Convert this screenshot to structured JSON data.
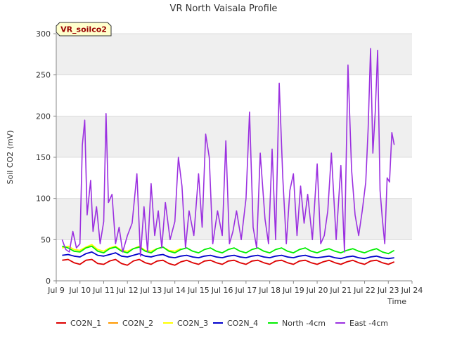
{
  "chart_data": {
    "type": "line",
    "title": "VR North Vaisala Profile",
    "xlabel": "Time",
    "ylabel": "Soil CO2 (mV)",
    "ylim": [
      0,
      300
    ],
    "xlim": [
      9,
      24
    ],
    "yticks": [
      "0",
      "50",
      "100",
      "150",
      "200",
      "250",
      "300"
    ],
    "xticks": [
      "Jul 9",
      "Jul 10",
      "Jul 11",
      "Jul 12",
      "Jul 13",
      "Jul 14",
      "Jul 15",
      "Jul 16",
      "Jul 17",
      "Jul 18",
      "Jul 19",
      "Jul 20",
      "Jul 21",
      "Jul 22",
      "Jul 23",
      "Jul 24"
    ],
    "grid": true,
    "badge": "VR_soilco2",
    "legend_position": "bottom",
    "series": [
      {
        "name": "CO2N_1",
        "color": "#dd0000",
        "x": [
          9.25,
          9.5,
          9.75,
          10.0,
          10.25,
          10.5,
          10.75,
          11.0,
          11.25,
          11.5,
          11.75,
          12.0,
          12.25,
          12.5,
          12.75,
          13.0,
          13.25,
          13.5,
          13.75,
          14.0,
          14.25,
          14.5,
          14.75,
          15.0,
          15.25,
          15.5,
          15.75,
          16.0,
          16.25,
          16.5,
          16.75,
          17.0,
          17.25,
          17.5,
          17.75,
          18.0,
          18.25,
          18.5,
          18.75,
          19.0,
          19.25,
          19.5,
          19.75,
          20.0,
          20.25,
          20.5,
          20.75,
          21.0,
          21.25,
          21.5,
          21.75,
          22.0,
          22.25,
          22.5,
          22.75,
          23.0,
          23.25
        ],
        "values": [
          25,
          26,
          22,
          20,
          25,
          26,
          21,
          20,
          24,
          26,
          21,
          19,
          24,
          26,
          22,
          20,
          24,
          25,
          21,
          19,
          23,
          25,
          22,
          20,
          24,
          25,
          22,
          20,
          24,
          25,
          22,
          20,
          24,
          25,
          22,
          20,
          24,
          25,
          22,
          20,
          24,
          25,
          22,
          20,
          23,
          25,
          22,
          20,
          23,
          25,
          22,
          20,
          24,
          25,
          22,
          20,
          23
        ]
      },
      {
        "name": "CO2N_2",
        "color": "#ff9900",
        "x": [],
        "values": []
      },
      {
        "name": "CO2N_3",
        "color": "#ffff00",
        "x": [
          9.25,
          9.5,
          9.75,
          10.0,
          10.25,
          10.5,
          10.75,
          11.0,
          11.25,
          11.5,
          11.75,
          12.0,
          12.25,
          12.5,
          12.75,
          13.0,
          13.25,
          13.5,
          13.75,
          14.0,
          14.25
        ],
        "values": [
          40,
          42,
          38,
          37,
          41,
          44,
          38,
          36,
          40,
          42,
          37,
          36,
          39,
          42,
          37,
          36,
          39,
          41,
          37,
          36,
          39
        ]
      },
      {
        "name": "CO2N_4",
        "color": "#0000cc",
        "x": [
          9.25,
          9.5,
          9.75,
          10.0,
          10.25,
          10.5,
          10.75,
          11.0,
          11.25,
          11.5,
          11.75,
          12.0,
          12.25,
          12.5,
          12.75,
          13.0,
          13.25,
          13.5,
          13.75,
          14.0,
          14.25,
          14.5,
          14.75,
          15.0,
          15.25,
          15.5,
          15.75,
          16.0,
          16.25,
          16.5,
          16.75,
          17.0,
          17.25,
          17.5,
          17.75,
          18.0,
          18.25,
          18.5,
          18.75,
          19.0,
          19.25,
          19.5,
          19.75,
          20.0,
          20.25,
          20.5,
          20.75,
          21.0,
          21.25,
          21.5,
          21.75,
          22.0,
          22.25,
          22.5,
          22.75,
          23.0,
          23.25
        ],
        "values": [
          31,
          32,
          30,
          29,
          33,
          35,
          31,
          30,
          32,
          34,
          30,
          29,
          31,
          33,
          30,
          29,
          31,
          32,
          29,
          28,
          30,
          31,
          29,
          28,
          30,
          31,
          29,
          28,
          30,
          31,
          29,
          28,
          30,
          31,
          29,
          28,
          30,
          31,
          29,
          28,
          30,
          31,
          29,
          28,
          29,
          30,
          28,
          27,
          29,
          30,
          28,
          27,
          29,
          30,
          28,
          27,
          28
        ]
      },
      {
        "name": "North -4cm",
        "color": "#00ee00",
        "x": [
          9.25,
          9.5,
          9.75,
          10.0,
          10.25,
          10.5,
          10.75,
          11.0,
          11.25,
          11.5,
          11.75,
          12.0,
          12.25,
          12.5,
          12.75,
          13.0,
          13.25,
          13.5,
          13.75,
          14.0,
          14.25,
          14.5,
          14.75,
          15.0,
          15.25,
          15.5,
          15.75,
          16.0,
          16.25,
          16.5,
          16.75,
          17.0,
          17.25,
          17.5,
          17.75,
          18.0,
          18.25,
          18.5,
          18.75,
          19.0,
          19.25,
          19.5,
          19.75,
          20.0,
          20.25,
          20.5,
          20.75,
          21.0,
          21.25,
          21.5,
          21.75,
          22.0,
          22.25,
          22.5,
          22.75,
          23.0,
          23.25
        ],
        "values": [
          42,
          40,
          36,
          35,
          40,
          42,
          36,
          34,
          39,
          41,
          36,
          34,
          39,
          41,
          36,
          34,
          39,
          41,
          36,
          34,
          38,
          40,
          36,
          34,
          38,
          40,
          36,
          34,
          38,
          40,
          36,
          34,
          38,
          40,
          36,
          34,
          38,
          40,
          36,
          34,
          38,
          40,
          36,
          34,
          37,
          39,
          36,
          34,
          37,
          39,
          36,
          34,
          37,
          39,
          35,
          33,
          37
        ]
      },
      {
        "name": "East -4cm",
        "color": "#9b30e0",
        "x": [
          9.25,
          9.4,
          9.55,
          9.7,
          9.85,
          10.0,
          10.1,
          10.2,
          10.3,
          10.45,
          10.55,
          10.7,
          10.85,
          11.0,
          11.1,
          11.2,
          11.35,
          11.5,
          11.65,
          11.8,
          12.0,
          12.2,
          12.4,
          12.55,
          12.7,
          12.85,
          13.0,
          13.15,
          13.3,
          13.45,
          13.6,
          13.8,
          14.0,
          14.15,
          14.3,
          14.45,
          14.6,
          14.8,
          15.0,
          15.15,
          15.3,
          15.45,
          15.6,
          15.8,
          16.0,
          16.15,
          16.3,
          16.45,
          16.6,
          16.8,
          17.0,
          17.15,
          17.3,
          17.45,
          17.6,
          17.8,
          17.95,
          18.1,
          18.25,
          18.4,
          18.55,
          18.7,
          18.85,
          19.0,
          19.15,
          19.3,
          19.45,
          19.6,
          19.8,
          20.0,
          20.15,
          20.3,
          20.45,
          20.6,
          20.8,
          21.0,
          21.15,
          21.3,
          21.45,
          21.6,
          21.75,
          21.9,
          22.05,
          22.15,
          22.25,
          22.35,
          22.45,
          22.55,
          22.65,
          22.75,
          22.85,
          22.95,
          23.05,
          23.15,
          23.25
        ],
        "values": [
          50,
          38,
          35,
          60,
          40,
          45,
          165,
          195,
          80,
          122,
          60,
          90,
          45,
          72,
          203,
          95,
          105,
          45,
          65,
          35,
          55,
          70,
          130,
          30,
          90,
          35,
          118,
          55,
          85,
          40,
          95,
          50,
          72,
          150,
          115,
          40,
          85,
          55,
          130,
          65,
          178,
          150,
          45,
          85,
          55,
          170,
          45,
          60,
          85,
          50,
          100,
          205,
          65,
          40,
          155,
          75,
          45,
          160,
          50,
          240,
          125,
          45,
          110,
          130,
          55,
          115,
          70,
          105,
          50,
          142,
          45,
          55,
          85,
          155,
          50,
          140,
          35,
          262,
          135,
          80,
          55,
          85,
          120,
          185,
          282,
          155,
          205,
          280,
          110,
          75,
          45,
          125,
          120,
          180,
          165
        ]
      }
    ]
  }
}
